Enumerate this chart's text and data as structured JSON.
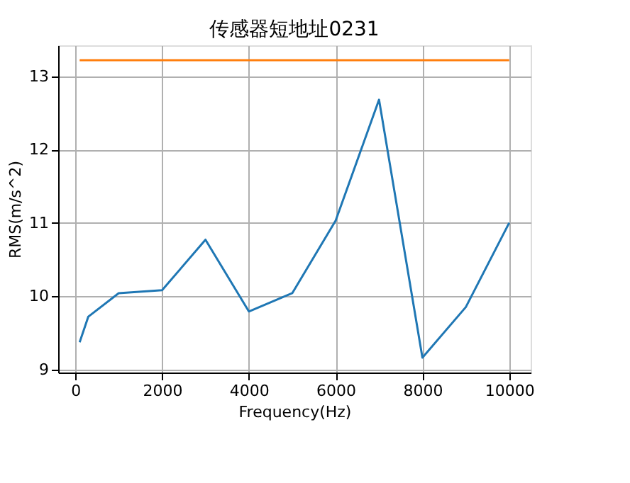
{
  "chart_data": {
    "type": "line",
    "title": "传感器短地址0231",
    "xlabel": "Frequency(Hz)",
    "ylabel": "RMS(m/s^2)",
    "xlim": [
      -395,
      10495
    ],
    "ylim": [
      8.957,
      13.423
    ],
    "xticks": [
      0,
      2000,
      4000,
      6000,
      8000,
      10000
    ],
    "yticks": [
      9,
      10,
      11,
      12,
      13
    ],
    "grid": true,
    "series": [
      {
        "color": "#1f77b4",
        "x": [
          100,
          300,
          1000,
          2000,
          3000,
          4000,
          5000,
          6000,
          7000,
          8000,
          9000,
          10000
        ],
        "values": [
          9.37,
          9.72,
          10.04,
          10.08,
          10.77,
          9.79,
          10.04,
          11.03,
          12.68,
          9.16,
          9.85,
          11.0
        ]
      },
      {
        "color": "#ff7f0e",
        "x": [
          100,
          10000
        ],
        "values": [
          13.22,
          13.22
        ]
      }
    ]
  }
}
